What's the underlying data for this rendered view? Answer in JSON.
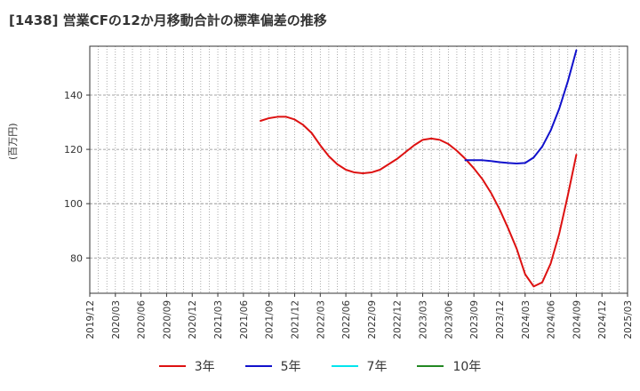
{
  "title": "[1438]  営業CFの12か月移動合計の標準偏差の推移",
  "chart_data": {
    "type": "line",
    "title": "[1438]  営業CFの12か月移動合計の標準偏差の推移",
    "ylabel": "(百万円)",
    "xlabel": "",
    "x_ticks": [
      "2019/12",
      "2020/03",
      "2020/06",
      "2020/09",
      "2020/12",
      "2021/03",
      "2021/06",
      "2021/09",
      "2021/12",
      "2022/03",
      "2022/06",
      "2022/09",
      "2022/12",
      "2023/03",
      "2023/06",
      "2023/09",
      "2023/12",
      "2024/03",
      "2024/06",
      "2024/09",
      "2024/12",
      "2025/03"
    ],
    "y_ticks": [
      80,
      100,
      120,
      140
    ],
    "ylim": [
      67,
      158
    ],
    "grid": true,
    "legend_position": "bottom",
    "series": [
      {
        "name": "3年",
        "color": "#dd1111",
        "points": [
          [
            "2021/08",
            130.5
          ],
          [
            "2021/09",
            131.5
          ],
          [
            "2021/10",
            132.0
          ],
          [
            "2021/11",
            132.0
          ],
          [
            "2021/12",
            131.0
          ],
          [
            "2022/01",
            129.0
          ],
          [
            "2022/02",
            126.0
          ],
          [
            "2022/03",
            121.5
          ],
          [
            "2022/04",
            117.5
          ],
          [
            "2022/05",
            114.5
          ],
          [
            "2022/06",
            112.5
          ],
          [
            "2022/07",
            111.5
          ],
          [
            "2022/08",
            111.2
          ],
          [
            "2022/09",
            111.5
          ],
          [
            "2022/10",
            112.5
          ],
          [
            "2022/11",
            114.5
          ],
          [
            "2022/12",
            116.5
          ],
          [
            "2023/01",
            119.0
          ],
          [
            "2023/02",
            121.5
          ],
          [
            "2023/03",
            123.5
          ],
          [
            "2023/04",
            124.0
          ],
          [
            "2023/05",
            123.5
          ],
          [
            "2023/06",
            122.0
          ],
          [
            "2023/07",
            119.5
          ],
          [
            "2023/08",
            116.5
          ],
          [
            "2023/09",
            113.0
          ],
          [
            "2023/10",
            109.0
          ],
          [
            "2023/11",
            104.0
          ],
          [
            "2023/12",
            98.0
          ],
          [
            "2024/01",
            91.0
          ],
          [
            "2024/02",
            83.5
          ],
          [
            "2024/03",
            74.0
          ],
          [
            "2024/04",
            69.5
          ],
          [
            "2024/05",
            71.0
          ],
          [
            "2024/06",
            78.0
          ],
          [
            "2024/07",
            89.0
          ],
          [
            "2024/08",
            103.0
          ],
          [
            "2024/09",
            118.0
          ]
        ]
      },
      {
        "name": "5年",
        "color": "#1111cc",
        "points": [
          [
            "2023/08",
            116.0
          ],
          [
            "2023/09",
            116.0
          ],
          [
            "2023/10",
            116.0
          ],
          [
            "2023/11",
            115.7
          ],
          [
            "2023/12",
            115.3
          ],
          [
            "2024/01",
            115.0
          ],
          [
            "2024/02",
            114.8
          ],
          [
            "2024/03",
            115.0
          ],
          [
            "2024/04",
            117.0
          ],
          [
            "2024/05",
            121.0
          ],
          [
            "2024/06",
            127.0
          ],
          [
            "2024/07",
            135.0
          ],
          [
            "2024/08",
            145.0
          ],
          [
            "2024/09",
            156.5
          ]
        ]
      },
      {
        "name": "7年",
        "color": "#00e5ee",
        "points": []
      },
      {
        "name": "10年",
        "color": "#228822",
        "points": []
      }
    ]
  }
}
